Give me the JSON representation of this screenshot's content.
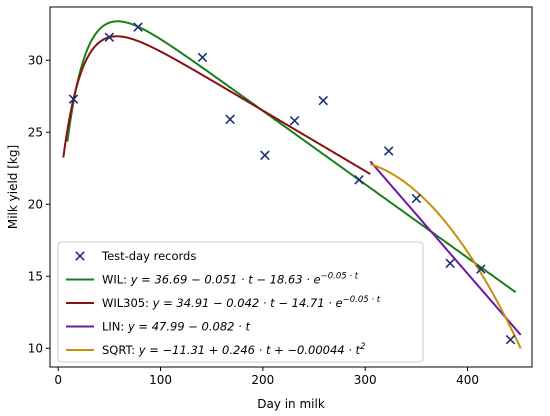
{
  "chart_data": {
    "type": "scatter",
    "xlabel": "Day in milk",
    "ylabel": "Milk yield [kg]",
    "xlim": [
      -8,
      463
    ],
    "ylim": [
      8.7,
      33.7
    ],
    "xticks": [
      0,
      100,
      200,
      300,
      400
    ],
    "yticks": [
      10,
      15,
      20,
      25,
      30
    ],
    "grid": false,
    "legend_position": "bottom-left",
    "records": {
      "name": "Test-day records",
      "color": "#1f2f7a",
      "marker": "x",
      "x": [
        15,
        50,
        78,
        141,
        168,
        202,
        231,
        259,
        294,
        323,
        350,
        383,
        413,
        442
      ],
      "y": [
        27.3,
        31.6,
        32.3,
        30.2,
        25.9,
        23.4,
        25.8,
        27.2,
        21.7,
        23.7,
        20.4,
        15.9,
        15.5,
        10.6
      ]
    },
    "models": [
      {
        "key": "WIL",
        "prefix": "WIL: ",
        "equation": "y = 36.69 − 0.051 · t − 18.63 · e^{−0.05 · t}",
        "color": "#1a7f1a",
        "form": "wilmink",
        "params": {
          "a": 36.69,
          "b": 0.051,
          "c": 18.63,
          "k": 0.05
        },
        "x_range": [
          9,
          447
        ]
      },
      {
        "key": "WIL305",
        "prefix": "WIL305: ",
        "equation": "y = 34.91 − 0.042 · t − 14.71 · e^{−0.05 · t}",
        "color": "#8b1010",
        "form": "wilmink",
        "params": {
          "a": 34.91,
          "b": 0.042,
          "c": 14.71,
          "k": 0.05
        },
        "x_range": [
          5,
          305
        ]
      },
      {
        "key": "LIN",
        "prefix": "LIN: ",
        "equation": "y = 47.99 − 0.082 · t",
        "color": "#7216a8",
        "form": "linear",
        "params": {
          "a": 47.99,
          "b": -0.082
        },
        "x_range": [
          305,
          452
        ]
      },
      {
        "key": "SQRT",
        "prefix": "SQRT: ",
        "equation": "y = −11.31 + 0.246 · t + −0.00044 · t^2",
        "color": "#c8900a",
        "form": "quadratic",
        "params": {
          "a": -11.31,
          "b": 0.246,
          "c": -0.00044
        },
        "x_range": [
          305,
          452
        ]
      }
    ]
  }
}
